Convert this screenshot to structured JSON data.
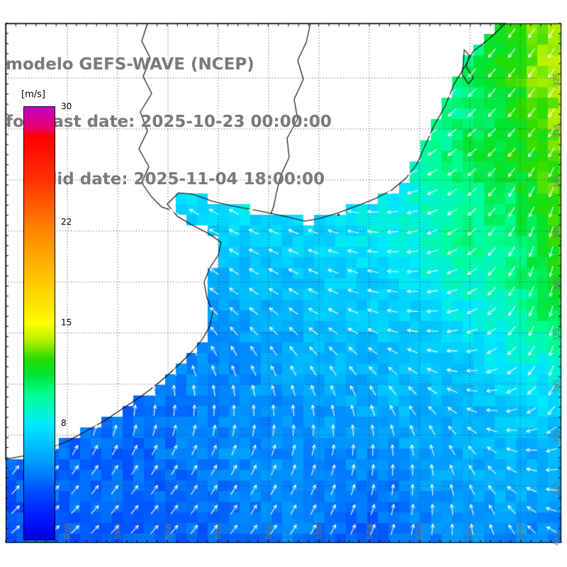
{
  "header": {
    "model_title": "modelo GEFS-WAVE (NCEP)",
    "forecast_date_line": "forecast date: 2025-10-23 00:00:00",
    "valid_date_line": "valid date: 2025-11-04 18:00:00"
  },
  "colorbar": {
    "unit_label": "[m/s]",
    "min": 0,
    "max": 30,
    "ticks": [
      30,
      22,
      15,
      8
    ]
  },
  "map_labels": {
    "lat": [
      "32S",
      "33S",
      "34S",
      "35S",
      "36S",
      "37S",
      "38S",
      "39S",
      "40S",
      "41S"
    ],
    "lon": [
      "60W",
      "59W",
      "58W",
      "57W",
      "56W",
      "55W",
      "54W",
      "53W",
      "52W",
      "51W"
    ]
  },
  "colors": {
    "header_text": "#7a7a7a",
    "axis_label_text": "#787878",
    "frame": "#000000",
    "graticule": "#383838",
    "land": "#ffffff",
    "coastline": "#000000",
    "arrow": "#ffffff",
    "colorbar_tick_text": "#000000"
  },
  "chart_data": {
    "type": "heatmap",
    "title": "modelo GEFS-WAVE (NCEP)",
    "units": "m/s",
    "value_range": [
      0,
      30
    ],
    "grid_cols": 13,
    "grid_rows": 13,
    "speed_grid": [
      [
        8,
        8,
        8,
        8,
        8,
        8,
        8,
        8,
        8,
        8.5,
        10,
        12.5,
        14
      ],
      [
        8,
        8,
        8,
        8,
        8,
        8,
        8,
        8,
        8,
        9,
        10.5,
        12.5,
        14
      ],
      [
        8,
        8,
        8,
        8,
        8,
        8,
        8,
        8,
        8,
        9,
        10.5,
        12,
        13.5
      ],
      [
        8,
        8,
        8,
        8,
        8,
        8,
        8,
        7.5,
        8,
        9.5,
        11,
        12,
        13
      ],
      [
        7,
        7,
        7,
        7.5,
        7.5,
        8,
        8,
        7.5,
        8,
        9,
        10,
        11,
        13
      ],
      [
        6.5,
        6.5,
        6.5,
        7,
        7,
        7,
        7,
        7.5,
        8,
        9,
        10,
        10.5,
        12.5
      ],
      [
        6,
        6,
        6,
        6,
        6,
        6,
        6.5,
        7,
        7,
        8,
        9,
        10,
        12
      ],
      [
        5.5,
        5.5,
        5.5,
        5.5,
        5,
        5.5,
        6,
        6.5,
        7,
        7,
        8,
        9,
        11
      ],
      [
        5,
        5,
        5,
        5,
        5,
        5,
        5.5,
        6,
        6,
        6.5,
        7,
        8,
        8.5
      ],
      [
        4.5,
        4.5,
        4.5,
        4,
        4.5,
        5,
        5,
        5.5,
        6,
        6,
        6,
        7,
        7
      ],
      [
        4,
        4,
        4,
        4,
        4.5,
        5,
        5,
        5,
        5,
        5.5,
        6,
        6,
        6
      ],
      [
        3.5,
        4,
        4,
        4,
        4,
        4.5,
        5,
        4.5,
        4,
        5,
        5.5,
        6,
        5
      ],
      [
        3,
        3.5,
        3.5,
        4,
        4,
        4,
        4.5,
        4,
        4,
        4.5,
        5,
        5,
        4.5
      ]
    ],
    "direction_grid_deg": [
      [
        200,
        200,
        200,
        200,
        200,
        200,
        200,
        200,
        210,
        225,
        230,
        235,
        240
      ],
      [
        200,
        200,
        200,
        200,
        200,
        200,
        200,
        200,
        210,
        225,
        228,
        232,
        238
      ],
      [
        200,
        200,
        200,
        200,
        200,
        200,
        200,
        205,
        210,
        220,
        225,
        230,
        235
      ],
      [
        180,
        180,
        180,
        170,
        165,
        160,
        160,
        170,
        190,
        210,
        220,
        230,
        240
      ],
      [
        150,
        150,
        150,
        150,
        150,
        150,
        150,
        155,
        180,
        200,
        220,
        240,
        250
      ],
      [
        150,
        150,
        150,
        150,
        152,
        155,
        158,
        162,
        175,
        195,
        215,
        240,
        255
      ],
      [
        140,
        140,
        140,
        142,
        144,
        146,
        150,
        158,
        168,
        185,
        210,
        240,
        260
      ],
      [
        130,
        130,
        130,
        132,
        133,
        135,
        140,
        148,
        160,
        175,
        200,
        235,
        260
      ],
      [
        115,
        115,
        112,
        110,
        110,
        112,
        118,
        124,
        134,
        152,
        180,
        220,
        255
      ],
      [
        85,
        85,
        83,
        80,
        84,
        88,
        94,
        100,
        110,
        125,
        155,
        195,
        240
      ],
      [
        55,
        56,
        58,
        60,
        62,
        65,
        70,
        76,
        86,
        100,
        125,
        160,
        200
      ],
      [
        45,
        47,
        49,
        51,
        54,
        57,
        61,
        66,
        75,
        88,
        108,
        140,
        175
      ],
      [
        40,
        42,
        44,
        46,
        49,
        52,
        55,
        59,
        66,
        76,
        92,
        118,
        150
      ]
    ],
    "colorbar_stops": [
      {
        "value": 30,
        "color": "#c000c0"
      },
      {
        "value": 28.5,
        "color": "#e8006a"
      },
      {
        "value": 28,
        "color": "#ff0000"
      },
      {
        "value": 25,
        "color": "#ff3000"
      },
      {
        "value": 22,
        "color": "#ff7800"
      },
      {
        "value": 19,
        "color": "#ffb400"
      },
      {
        "value": 16,
        "color": "#ffe800"
      },
      {
        "value": 15,
        "color": "#ffff00"
      },
      {
        "value": 13.8,
        "color": "#b4f000"
      },
      {
        "value": 12.5,
        "color": "#28dc00"
      },
      {
        "value": 11.5,
        "color": "#00e432"
      },
      {
        "value": 10,
        "color": "#00ff96"
      },
      {
        "value": 8.5,
        "color": "#00f0e0"
      },
      {
        "value": 8,
        "color": "#00e8ff"
      },
      {
        "value": 6.5,
        "color": "#00c0ff"
      },
      {
        "value": 5,
        "color": "#0090ff"
      },
      {
        "value": 3.5,
        "color": "#0054ff"
      },
      {
        "value": 1.5,
        "color": "#0018ff"
      },
      {
        "value": 0,
        "color": "#0000dc"
      }
    ],
    "coastline": [
      [
        8,
        33
      ],
      [
        713,
        33
      ],
      [
        690,
        55
      ],
      [
        668,
        72
      ],
      [
        655,
        95
      ],
      [
        640,
        120
      ],
      [
        628,
        150
      ],
      [
        612,
        178
      ],
      [
        600,
        205
      ],
      [
        588,
        232
      ],
      [
        572,
        252
      ],
      [
        553,
        268
      ],
      [
        530,
        280
      ],
      [
        505,
        290
      ],
      [
        478,
        300
      ],
      [
        452,
        308
      ],
      [
        430,
        312
      ],
      [
        405,
        306
      ],
      [
        378,
        300
      ],
      [
        352,
        295
      ],
      [
        325,
        290
      ],
      [
        300,
        284
      ],
      [
        272,
        274
      ],
      [
        252,
        272
      ],
      [
        236,
        288
      ],
      [
        250,
        305
      ],
      [
        272,
        318
      ],
      [
        295,
        330
      ],
      [
        312,
        342
      ],
      [
        308,
        360
      ],
      [
        296,
        378
      ],
      [
        288,
        398
      ],
      [
        292,
        420
      ],
      [
        300,
        440
      ],
      [
        296,
        460
      ],
      [
        286,
        478
      ],
      [
        272,
        495
      ],
      [
        255,
        512
      ],
      [
        238,
        528
      ],
      [
        218,
        545
      ],
      [
        198,
        560
      ],
      [
        175,
        575
      ],
      [
        150,
        592
      ],
      [
        122,
        608
      ],
      [
        96,
        622
      ],
      [
        68,
        634
      ],
      [
        40,
        642
      ],
      [
        8,
        648
      ]
    ],
    "rivers": [
      [
        [
          438,
          33
        ],
        [
          432,
          60
        ],
        [
          420,
          85
        ],
        [
          428,
          112
        ],
        [
          415,
          140
        ],
        [
          420,
          168
        ],
        [
          405,
          195
        ],
        [
          408,
          222
        ],
        [
          396,
          248
        ],
        [
          390,
          272
        ],
        [
          386,
          292
        ],
        [
          382,
          302
        ]
      ],
      [
        [
          208,
          33
        ],
        [
          200,
          58
        ],
        [
          212,
          82
        ],
        [
          202,
          108
        ],
        [
          214,
          132
        ],
        [
          198,
          158
        ],
        [
          208,
          185
        ],
        [
          196,
          210
        ],
        [
          210,
          235
        ],
        [
          200,
          258
        ],
        [
          214,
          278
        ],
        [
          228,
          292
        ],
        [
          240,
          296
        ]
      ]
    ],
    "lagoon": [
      [
        655,
        70
      ],
      [
        662,
        78
      ],
      [
        658,
        95
      ],
      [
        668,
        110
      ],
      [
        661,
        118
      ],
      [
        652,
        105
      ],
      [
        654,
        85
      ],
      [
        655,
        70
      ]
    ],
    "islets": [
      [
        476,
        302
      ]
    ]
  }
}
